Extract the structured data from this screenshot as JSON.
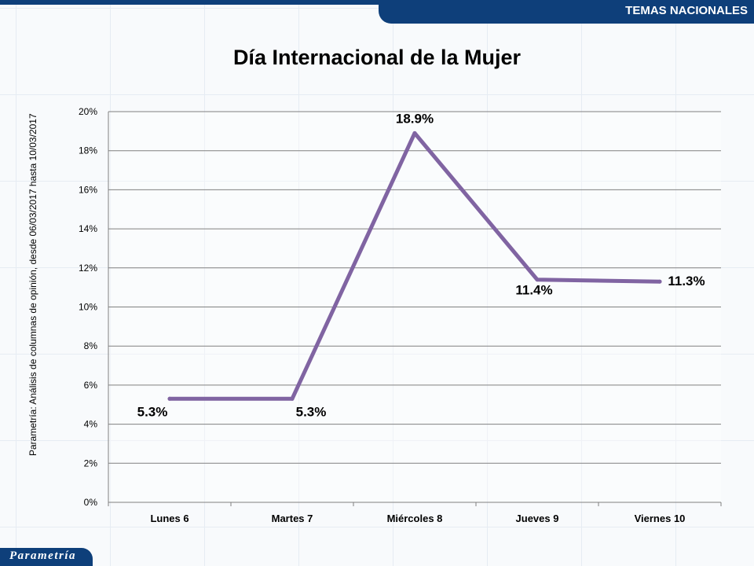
{
  "header": {
    "section_label": "TEMAS NACIONALES"
  },
  "side_note": "Parametría: Análisis de columnas de opinión, desde 06/03/2017 hasta 10/03/2017",
  "logo": {
    "text": "Parametría"
  },
  "colors": {
    "brand_blue": "#0e3f7a",
    "series_line": "#8064a2"
  },
  "chart_data": {
    "type": "line",
    "title": "Día Internacional de la Mujer",
    "categories": [
      "Lunes 6",
      "Martes 7",
      "Miércoles 8",
      "Jueves 9",
      "Viernes 10"
    ],
    "series": [
      {
        "values": [
          5.3,
          5.3,
          18.9,
          11.4,
          11.3
        ],
        "data_labels": [
          "5.3%",
          "5.3%",
          "18.9%",
          "11.4%",
          "11.3%"
        ]
      }
    ],
    "y_ticks": [
      "0%",
      "2%",
      "4%",
      "6%",
      "8%",
      "10%",
      "12%",
      "14%",
      "16%",
      "18%",
      "20%"
    ],
    "ylim": [
      0,
      20
    ],
    "y_unit": "%",
    "grid": true,
    "legend": "none"
  }
}
